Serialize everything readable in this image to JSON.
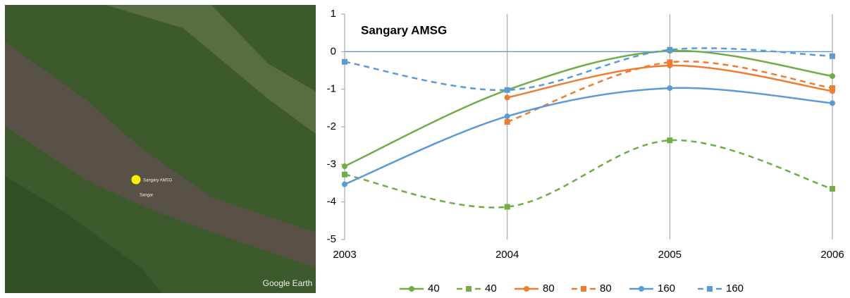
{
  "map": {
    "site_label": "Sangary AMSG",
    "town_label": "Sangar",
    "attribution": "Google Earth"
  },
  "chart_data": {
    "type": "line",
    "title": "Sangary AMSG",
    "x": [
      2003,
      2004,
      2005,
      2006
    ],
    "xlim": [
      2003,
      2006
    ],
    "xticks": [
      2003,
      2004,
      2005,
      2006
    ],
    "ylim": [
      -5,
      1
    ],
    "yticks": [
      -5,
      -4,
      -3,
      -2,
      -1,
      0,
      1
    ],
    "grid": true,
    "legend": "bottom",
    "series": [
      {
        "name": "40",
        "color": "#70ad47",
        "dashed": false,
        "marker": "circle",
        "values": [
          -3.05,
          -1.02,
          0.02,
          -0.65
        ]
      },
      {
        "name": "40",
        "color": "#70ad47",
        "dashed": true,
        "marker": "square",
        "values": [
          -3.27,
          -4.13,
          -2.36,
          -3.65
        ]
      },
      {
        "name": "80",
        "color": "#ed7d31",
        "dashed": false,
        "marker": "circle",
        "values": [
          null,
          -1.22,
          -0.37,
          -1.05
        ]
      },
      {
        "name": "80",
        "color": "#ed7d31",
        "dashed": true,
        "marker": "square",
        "values": [
          null,
          -1.87,
          -0.28,
          -0.97
        ]
      },
      {
        "name": "160",
        "color": "#5b9bd5",
        "dashed": false,
        "marker": "circle",
        "values": [
          -3.53,
          -1.72,
          -0.97,
          -1.37
        ]
      },
      {
        "name": "160",
        "color": "#5b9bd5",
        "dashed": true,
        "marker": "square",
        "values": [
          -0.27,
          -1.02,
          0.05,
          -0.12
        ]
      }
    ]
  }
}
